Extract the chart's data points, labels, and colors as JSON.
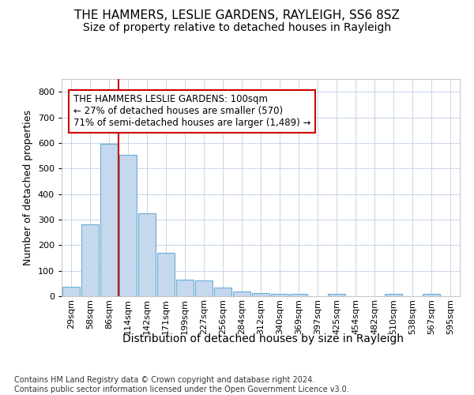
{
  "title": "THE HAMMERS, LESLIE GARDENS, RAYLEIGH, SS6 8SZ",
  "subtitle": "Size of property relative to detached houses in Rayleigh",
  "xlabel": "Distribution of detached houses by size in Rayleigh",
  "ylabel": "Number of detached properties",
  "categories": [
    "29sqm",
    "58sqm",
    "86sqm",
    "114sqm",
    "142sqm",
    "171sqm",
    "199sqm",
    "227sqm",
    "256sqm",
    "284sqm",
    "312sqm",
    "340sqm",
    "369sqm",
    "397sqm",
    "425sqm",
    "454sqm",
    "482sqm",
    "510sqm",
    "538sqm",
    "567sqm",
    "595sqm"
  ],
  "values": [
    38,
    280,
    598,
    553,
    325,
    170,
    65,
    63,
    35,
    20,
    12,
    8,
    10,
    0,
    8,
    0,
    0,
    8,
    0,
    8,
    0
  ],
  "bar_color": "#c5d8ed",
  "bar_edge_color": "#6aadd5",
  "grid_color": "#c8d4e8",
  "bg_color": "#ffffff",
  "property_line_color": "#cc0000",
  "property_line_x": 2.5,
  "annotation_line1": "THE HAMMERS LESLIE GARDENS: 100sqm",
  "annotation_line2": "← 27% of detached houses are smaller (570)",
  "annotation_line3": "71% of semi-detached houses are larger (1,489) →",
  "annotation_box_edge_color": "#cc0000",
  "footer_text": "Contains HM Land Registry data © Crown copyright and database right 2024.\nContains public sector information licensed under the Open Government Licence v3.0.",
  "ylim": [
    0,
    850
  ],
  "yticks": [
    0,
    100,
    200,
    300,
    400,
    500,
    600,
    700,
    800
  ],
  "title_fontsize": 11,
  "subtitle_fontsize": 10,
  "xlabel_fontsize": 10,
  "ylabel_fontsize": 9,
  "tick_fontsize": 8,
  "annot_fontsize": 8.5,
  "footer_fontsize": 7
}
